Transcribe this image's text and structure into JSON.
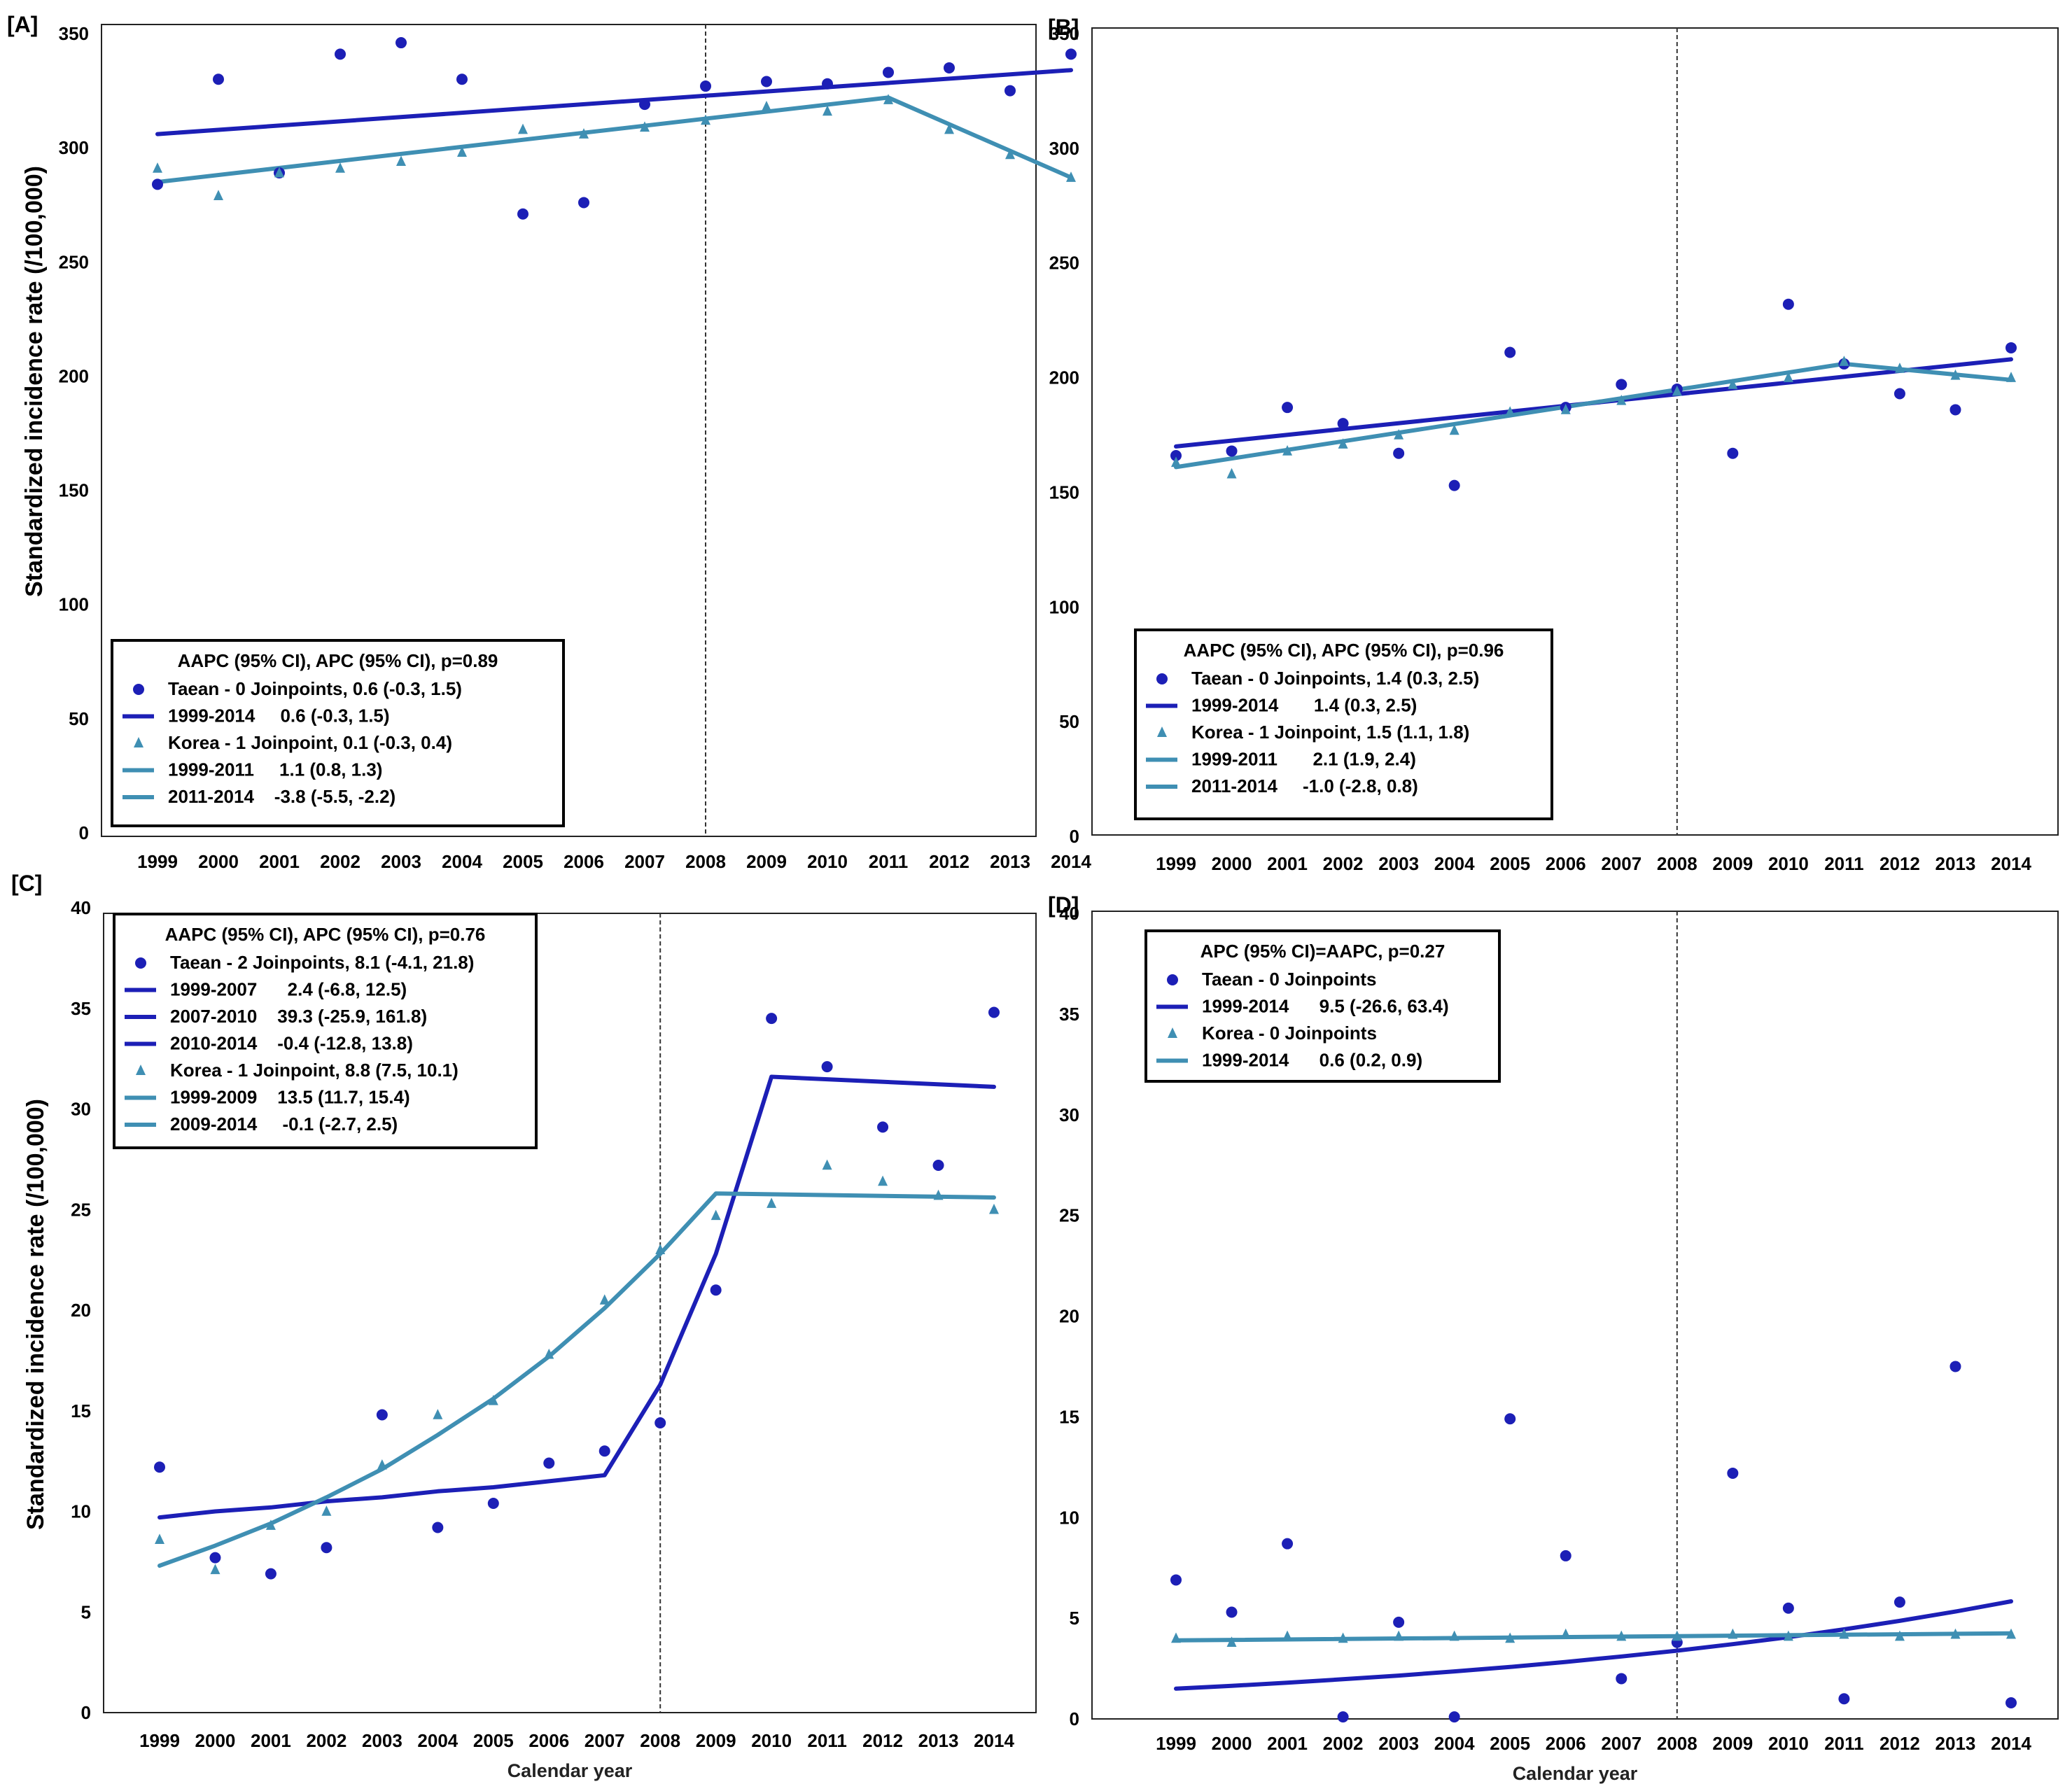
{
  "colors": {
    "taean": "#1c1fb6",
    "korea": "#3f8fb3",
    "frame": "#222222",
    "text": "#000000"
  },
  "shared": {
    "ylabel": "Standardized incidence rate (/100,000)",
    "xlabel": "Calendar year",
    "years": [
      "1999",
      "2000",
      "2001",
      "2002",
      "2003",
      "2004",
      "2005",
      "2006",
      "2007",
      "2008",
      "2009",
      "2010",
      "2011",
      "2012",
      "2013",
      "2014"
    ]
  },
  "chart_data": [
    {
      "panel": "[A]",
      "type": "line+scatter",
      "ylim": [
        0,
        350
      ],
      "yticks": [
        "0",
        "50",
        "100",
        "150",
        "200",
        "250",
        "300",
        "350"
      ],
      "show_ylabel": true,
      "show_xlabel": false,
      "reference_year": 2008,
      "legend": {
        "title": "AAPC (95% CI), APC (95% CI), p=0.89",
        "entries": [
          {
            "symbol": "dot",
            "series": "taean",
            "text": "Taean - 0 Joinpoints, 0.6 (-0.3, 1.5)"
          },
          {
            "symbol": "line",
            "series": "taean",
            "text": "1999-2014     0.6 (-0.3, 1.5)"
          },
          {
            "symbol": "triangle",
            "series": "korea",
            "text": "Korea - 1 Joinpoint, 0.1 (-0.3, 0.4)"
          },
          {
            "symbol": "line",
            "series": "korea",
            "text": "1999-2011     1.1 (0.8, 1.3)"
          },
          {
            "symbol": "line",
            "series": "korea",
            "text": "2011-2014    -3.8 (-5.5, -2.2)"
          }
        ]
      },
      "series": [
        {
          "name": "Taean",
          "kind": "scatter",
          "marker": "dot",
          "color_key": "taean",
          "values": [
            284,
            330,
            289,
            341,
            346,
            330,
            271,
            276,
            319,
            327,
            329,
            328,
            333,
            335,
            325,
            341
          ]
        },
        {
          "name": "Taean 1999-2014",
          "kind": "line",
          "color_key": "taean",
          "points": [
            [
              1999,
              306
            ],
            [
              2014,
              334
            ]
          ]
        },
        {
          "name": "Korea",
          "kind": "scatter",
          "marker": "triangle",
          "color_key": "korea",
          "values": [
            291,
            279,
            289,
            291,
            294,
            298,
            308,
            306,
            309,
            312,
            318,
            316,
            321,
            308,
            297,
            287
          ]
        },
        {
          "name": "Korea joinpoint",
          "kind": "line",
          "color_key": "korea",
          "points": [
            [
              1999,
              285
            ],
            [
              2011,
              322
            ],
            [
              2014,
              287
            ]
          ]
        }
      ]
    },
    {
      "panel": "[B]",
      "type": "line+scatter",
      "ylim": [
        0,
        350
      ],
      "yticks": [
        "0",
        "50",
        "100",
        "150",
        "200",
        "250",
        "300",
        "350"
      ],
      "show_ylabel": false,
      "show_xlabel": false,
      "reference_year": 2008,
      "legend": {
        "title": "AAPC (95% CI), APC (95% CI), p=0.96",
        "entries": [
          {
            "symbol": "dot",
            "series": "taean",
            "text": "Taean - 0 Joinpoints, 1.4 (0.3, 2.5)"
          },
          {
            "symbol": "line",
            "series": "taean",
            "text": "1999-2014       1.4 (0.3, 2.5)"
          },
          {
            "symbol": "triangle",
            "series": "korea",
            "text": "Korea - 1 Joinpoint, 1.5 (1.1, 1.8)"
          },
          {
            "symbol": "line",
            "series": "korea",
            "text": "1999-2011       2.1 (1.9, 2.4)"
          },
          {
            "symbol": "line",
            "series": "korea",
            "text": "2011-2014     -1.0 (-2.8, 0.8)"
          }
        ]
      },
      "series": [
        {
          "name": "Taean",
          "kind": "scatter",
          "marker": "dot",
          "color_key": "taean",
          "values": [
            166,
            168,
            187,
            180,
            167,
            153,
            211,
            187,
            197,
            195,
            167,
            232,
            206,
            193,
            186,
            213
          ]
        },
        {
          "name": "Taean 1999-2014",
          "kind": "line",
          "color_key": "taean",
          "points": [
            [
              1999,
              170
            ],
            [
              2014,
              208
            ]
          ]
        },
        {
          "name": "Korea",
          "kind": "scatter",
          "marker": "triangle",
          "color_key": "korea",
          "values": [
            163,
            158,
            168,
            171,
            175,
            177,
            185,
            186,
            190,
            194,
            197,
            200,
            207,
            204,
            201,
            200
          ]
        },
        {
          "name": "Korea joinpoint",
          "kind": "line",
          "color_key": "korea",
          "points": [
            [
              1999,
              161
            ],
            [
              2011,
              206
            ],
            [
              2014,
              199
            ]
          ]
        }
      ]
    },
    {
      "panel": "[C]",
      "type": "line+scatter",
      "ylim": [
        0,
        40
      ],
      "yticks": [
        "0",
        "5",
        "10",
        "15",
        "20",
        "25",
        "30",
        "35",
        "40"
      ],
      "show_ylabel": true,
      "show_xlabel": true,
      "reference_year": 2008,
      "legend": {
        "title": "AAPC (95% CI), APC (95% CI), p=0.76",
        "entries": [
          {
            "symbol": "dot",
            "series": "taean",
            "text": "Taean - 2 Joinpoints, 8.1 (-4.1, 21.8)"
          },
          {
            "symbol": "line",
            "series": "taean",
            "text": "1999-2007      2.4 (-6.8, 12.5)"
          },
          {
            "symbol": "line",
            "series": "taean",
            "text": "2007-2010    39.3 (-25.9, 161.8)"
          },
          {
            "symbol": "line",
            "series": "taean",
            "text": "2010-2014    -0.4 (-12.8, 13.8)"
          },
          {
            "symbol": "triangle",
            "series": "korea",
            "text": "Korea - 1 Joinpoint, 8.8 (7.5, 10.1)"
          },
          {
            "symbol": "line",
            "series": "korea",
            "text": "1999-2009    13.5 (11.7, 15.4)"
          },
          {
            "symbol": "line",
            "series": "korea",
            "text": "2009-2014     -0.1 (-2.7, 2.5)"
          }
        ]
      },
      "series": [
        {
          "name": "Taean",
          "kind": "scatter",
          "marker": "dot",
          "color_key": "taean",
          "values": [
            12.2,
            7.7,
            6.9,
            8.2,
            14.8,
            9.2,
            10.4,
            12.4,
            13.0,
            14.4,
            21.0,
            34.5,
            32.1,
            29.1,
            27.2,
            34.8
          ]
        },
        {
          "name": "Taean joinpoint",
          "kind": "line",
          "color_key": "taean",
          "points": [
            [
              1999,
              9.7
            ],
            [
              2000,
              10.0
            ],
            [
              2001,
              10.2
            ],
            [
              2002,
              10.5
            ],
            [
              2003,
              10.7
            ],
            [
              2004,
              11.0
            ],
            [
              2005,
              11.2
            ],
            [
              2006,
              11.5
            ],
            [
              2007,
              11.8
            ],
            [
              2008,
              16.3
            ],
            [
              2009,
              22.8
            ],
            [
              2010,
              31.6
            ],
            [
              2014,
              31.1
            ]
          ]
        },
        {
          "name": "Korea",
          "kind": "scatter",
          "marker": "triangle",
          "color_key": "korea",
          "values": [
            8.6,
            7.1,
            9.3,
            10.0,
            12.3,
            14.8,
            15.5,
            17.8,
            20.5,
            23.0,
            24.7,
            25.3,
            27.2,
            26.4,
            25.7,
            25.0
          ]
        },
        {
          "name": "Korea joinpoint",
          "kind": "line",
          "color_key": "korea",
          "points": [
            [
              1999,
              7.3
            ],
            [
              2000,
              8.3
            ],
            [
              2001,
              9.4
            ],
            [
              2002,
              10.7
            ],
            [
              2003,
              12.1
            ],
            [
              2004,
              13.8
            ],
            [
              2005,
              15.6
            ],
            [
              2006,
              17.7
            ],
            [
              2007,
              20.1
            ],
            [
              2008,
              22.8
            ],
            [
              2009,
              25.8
            ],
            [
              2014,
              25.6
            ]
          ]
        }
      ]
    },
    {
      "panel": "[D]",
      "type": "line+scatter",
      "ylim": [
        0,
        40
      ],
      "yticks": [
        "0",
        "5",
        "10",
        "15",
        "20",
        "25",
        "30",
        "35",
        "40"
      ],
      "show_ylabel": false,
      "show_xlabel": true,
      "reference_year": 2008,
      "legend": {
        "title": "APC (95% CI)=AAPC, p=0.27",
        "entries": [
          {
            "symbol": "dot",
            "series": "taean",
            "text": "Taean - 0 Joinpoints"
          },
          {
            "symbol": "line",
            "series": "taean",
            "text": "1999-2014      9.5 (-26.6, 63.4)"
          },
          {
            "symbol": "triangle",
            "series": "korea",
            "text": "Korea - 0 Joinpoints"
          },
          {
            "symbol": "line",
            "series": "korea",
            "text": "1999-2014      0.6 (0.2, 0.9)"
          }
        ]
      },
      "series": [
        {
          "name": "Taean",
          "kind": "scatter",
          "marker": "dot",
          "color_key": "taean",
          "values": [
            6.9,
            5.3,
            8.7,
            0.1,
            4.8,
            0.1,
            14.9,
            8.1,
            2.0,
            3.8,
            12.2,
            5.5,
            1.0,
            5.8,
            17.5,
            0.8
          ]
        },
        {
          "name": "Taean 1999-2014",
          "kind": "line",
          "color_key": "taean",
          "points": [
            [
              1999,
              1.5
            ],
            [
              2000,
              1.64
            ],
            [
              2001,
              1.8
            ],
            [
              2002,
              1.97
            ],
            [
              2003,
              2.15
            ],
            [
              2004,
              2.36
            ],
            [
              2005,
              2.58
            ],
            [
              2006,
              2.83
            ],
            [
              2007,
              3.1
            ],
            [
              2008,
              3.39
            ],
            [
              2009,
              3.71
            ],
            [
              2010,
              4.06
            ],
            [
              2011,
              4.45
            ],
            [
              2012,
              4.87
            ],
            [
              2013,
              5.33
            ],
            [
              2014,
              5.84
            ]
          ]
        },
        {
          "name": "Korea",
          "kind": "scatter",
          "marker": "triangle",
          "color_key": "korea",
          "values": [
            4.0,
            3.8,
            4.1,
            4.0,
            4.1,
            4.1,
            4.0,
            4.2,
            4.1,
            4.1,
            4.2,
            4.1,
            4.2,
            4.1,
            4.2,
            4.2
          ]
        },
        {
          "name": "Korea 1999-2014",
          "kind": "line",
          "color_key": "korea",
          "points": [
            [
              1999,
              3.9
            ],
            [
              2014,
              4.25
            ]
          ]
        }
      ]
    }
  ]
}
